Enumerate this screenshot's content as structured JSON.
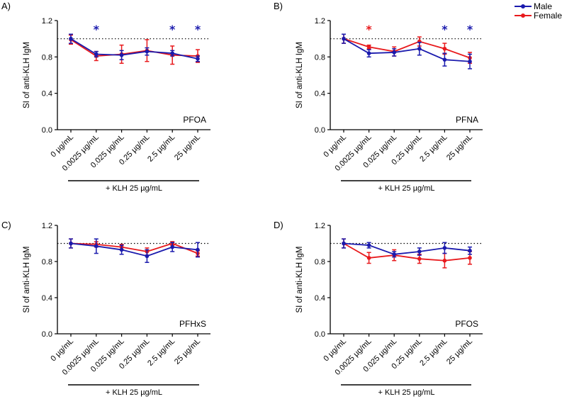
{
  "legend": [
    {
      "name": "Male",
      "color": "#1a1aad"
    },
    {
      "name": "Female",
      "color": "#e8191c"
    }
  ],
  "chart_data": [
    {
      "type": "line",
      "panel": "A)",
      "compound": "PFOA",
      "ylabel": "SI of anti-KLH IgM",
      "ylim": [
        0,
        1.2
      ],
      "yticks": [
        "0.0",
        "0.4",
        "0.8",
        "1.2"
      ],
      "reference_line": 1.0,
      "categories": [
        "0 µg/mL",
        "0.0025 µg/mL",
        "0.025 µg/mL",
        "0.25 µg/mL",
        "2.5 µg/mL",
        "25 µg/mL"
      ],
      "group_label": "+ KLH 25 µg/mL",
      "series": [
        {
          "name": "Male",
          "values": [
            1.0,
            0.83,
            0.82,
            0.86,
            0.84,
            0.78
          ],
          "errors": [
            0.05,
            0.03,
            0.05,
            0.04,
            0.03,
            0.03
          ]
        },
        {
          "name": "Female",
          "values": [
            0.99,
            0.81,
            0.83,
            0.87,
            0.82,
            0.81
          ],
          "errors": [
            0.05,
            0.05,
            0.1,
            0.12,
            0.1,
            0.07
          ]
        }
      ],
      "significance": [
        {
          "index": 1,
          "series": "Male",
          "label": "*"
        },
        {
          "index": 4,
          "series": "Male",
          "label": "*"
        },
        {
          "index": 5,
          "series": "Male",
          "label": "*"
        }
      ]
    },
    {
      "type": "line",
      "panel": "B)",
      "compound": "PFNA",
      "ylabel": "SI of anti-KLH IgM",
      "ylim": [
        0,
        1.2
      ],
      "yticks": [
        "0.0",
        "0.4",
        "0.8",
        "1.2"
      ],
      "reference_line": 1.0,
      "categories": [
        "0 µg/mL",
        "0.0025 µg/mL",
        "0.025 µg/mL",
        "0.25 µg/mL",
        "2.5 µg/mL",
        "25 µg/mL"
      ],
      "group_label": "+ KLH 25 µg/mL",
      "series": [
        {
          "name": "Male",
          "values": [
            1.0,
            0.84,
            0.85,
            0.89,
            0.77,
            0.75
          ],
          "errors": [
            0.05,
            0.04,
            0.04,
            0.07,
            0.07,
            0.08
          ]
        },
        {
          "name": "Female",
          "values": [
            1.0,
            0.91,
            0.86,
            0.97,
            0.89,
            0.79
          ],
          "errors": [
            0.05,
            0.02,
            0.05,
            0.05,
            0.06,
            0.06
          ]
        }
      ],
      "significance": [
        {
          "index": 1,
          "series": "Female",
          "label": "*"
        },
        {
          "index": 4,
          "series": "Male",
          "label": "*"
        },
        {
          "index": 5,
          "series": "Male",
          "label": "*"
        }
      ]
    },
    {
      "type": "line",
      "panel": "C)",
      "compound": "PFHxS",
      "ylabel": "SI of anti-KLH IgM",
      "ylim": [
        0,
        1.2
      ],
      "yticks": [
        "0.0",
        "0.4",
        "0.8",
        "1.2"
      ],
      "reference_line": 1.0,
      "categories": [
        "0 µg/mL",
        "0.0025 µg/mL",
        "0.025 µg/mL",
        "0.25 µg/mL",
        "2.5 µg/mL",
        "25 µg/mL"
      ],
      "group_label": "+ KLH 25 µg/mL",
      "series": [
        {
          "name": "Male",
          "values": [
            1.0,
            0.97,
            0.93,
            0.86,
            0.96,
            0.93
          ],
          "errors": [
            0.05,
            0.08,
            0.05,
            0.07,
            0.05,
            0.08
          ]
        },
        {
          "name": "Female",
          "values": [
            1.0,
            0.99,
            0.96,
            0.91,
            1.0,
            0.89
          ],
          "errors": [
            0.05,
            0.03,
            0.03,
            0.04,
            0.02,
            0.03
          ]
        }
      ],
      "significance": []
    },
    {
      "type": "line",
      "panel": "D)",
      "compound": "PFOS",
      "ylabel": "SI of anti-KLH IgM",
      "ylim": [
        0,
        1.2
      ],
      "yticks": [
        "0.0",
        "0.4",
        "0.8",
        "1.2"
      ],
      "reference_line": 1.0,
      "categories": [
        "0 µg/mL",
        "0.0025 µg/mL",
        "0.025 µg/mL",
        "0.25 µg/mL",
        "2.5 µg/mL",
        "25 µg/mL"
      ],
      "group_label": "+ KLH 25 µg/mL",
      "series": [
        {
          "name": "Male",
          "values": [
            1.0,
            0.98,
            0.88,
            0.91,
            0.95,
            0.92
          ],
          "errors": [
            0.05,
            0.03,
            0.03,
            0.04,
            0.06,
            0.04
          ]
        },
        {
          "name": "Female",
          "values": [
            1.0,
            0.84,
            0.87,
            0.83,
            0.81,
            0.84
          ],
          "errors": [
            0.05,
            0.06,
            0.06,
            0.05,
            0.08,
            0.07
          ]
        }
      ],
      "significance": []
    }
  ]
}
